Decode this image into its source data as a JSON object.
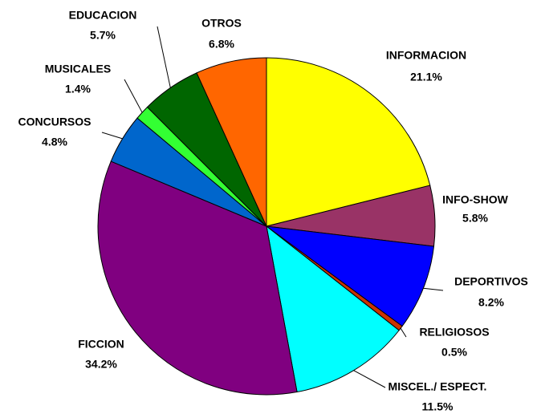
{
  "chart_data": {
    "type": "pie",
    "categories": [
      "INFORMACION",
      "INFO-SHOW",
      "DEPORTIVOS",
      "RELIGIOSOS",
      "MISCEL./ ESPECT.",
      "FICCION",
      "CONCURSOS",
      "MUSICALES",
      "EDUCACION",
      "OTROS"
    ],
    "values": [
      21.1,
      5.8,
      8.2,
      0.5,
      11.5,
      34.2,
      4.8,
      1.4,
      5.7,
      6.8
    ],
    "value_labels": [
      "21.1%",
      "5.8%",
      "8.2%",
      "0.5%",
      "11.5%",
      "34.2%",
      "4.8%",
      "1.4%",
      "5.7%",
      "6.8%"
    ],
    "colors": [
      "#ffff00",
      "#993366",
      "#0000ff",
      "#cc3300",
      "#00ffff",
      "#800080",
      "#0066cc",
      "#33ff33",
      "#006600",
      "#ff6600"
    ]
  }
}
